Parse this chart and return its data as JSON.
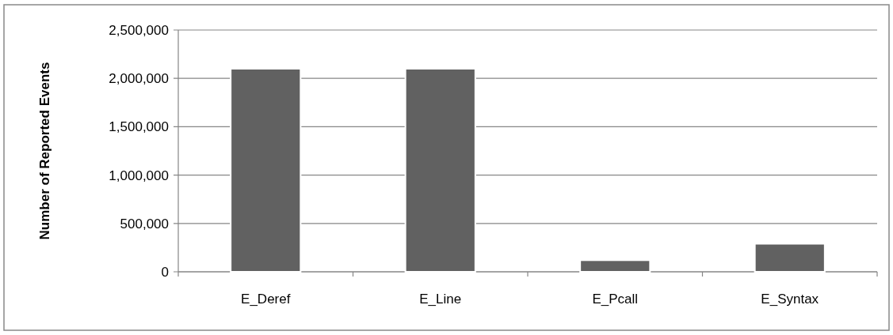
{
  "chart_data": {
    "type": "bar",
    "ylabel": "Number of Reported Events",
    "categories": [
      "E_Deref",
      "E_Line",
      "E_Pcall",
      "E_Syntax"
    ],
    "values": [
      2100000,
      2100000,
      120000,
      290000
    ],
    "color": "#616161",
    "ylim": [
      0,
      2500000
    ],
    "yticks": [
      {
        "value": 0,
        "label": "0"
      },
      {
        "value": 500000,
        "label": "500,000"
      },
      {
        "value": 1000000,
        "label": "1,000,000"
      },
      {
        "value": 1500000,
        "label": "1,500,000"
      },
      {
        "value": 2000000,
        "label": "2,000,000"
      },
      {
        "value": 2500000,
        "label": "2,500,000"
      }
    ],
    "grid": "y"
  }
}
